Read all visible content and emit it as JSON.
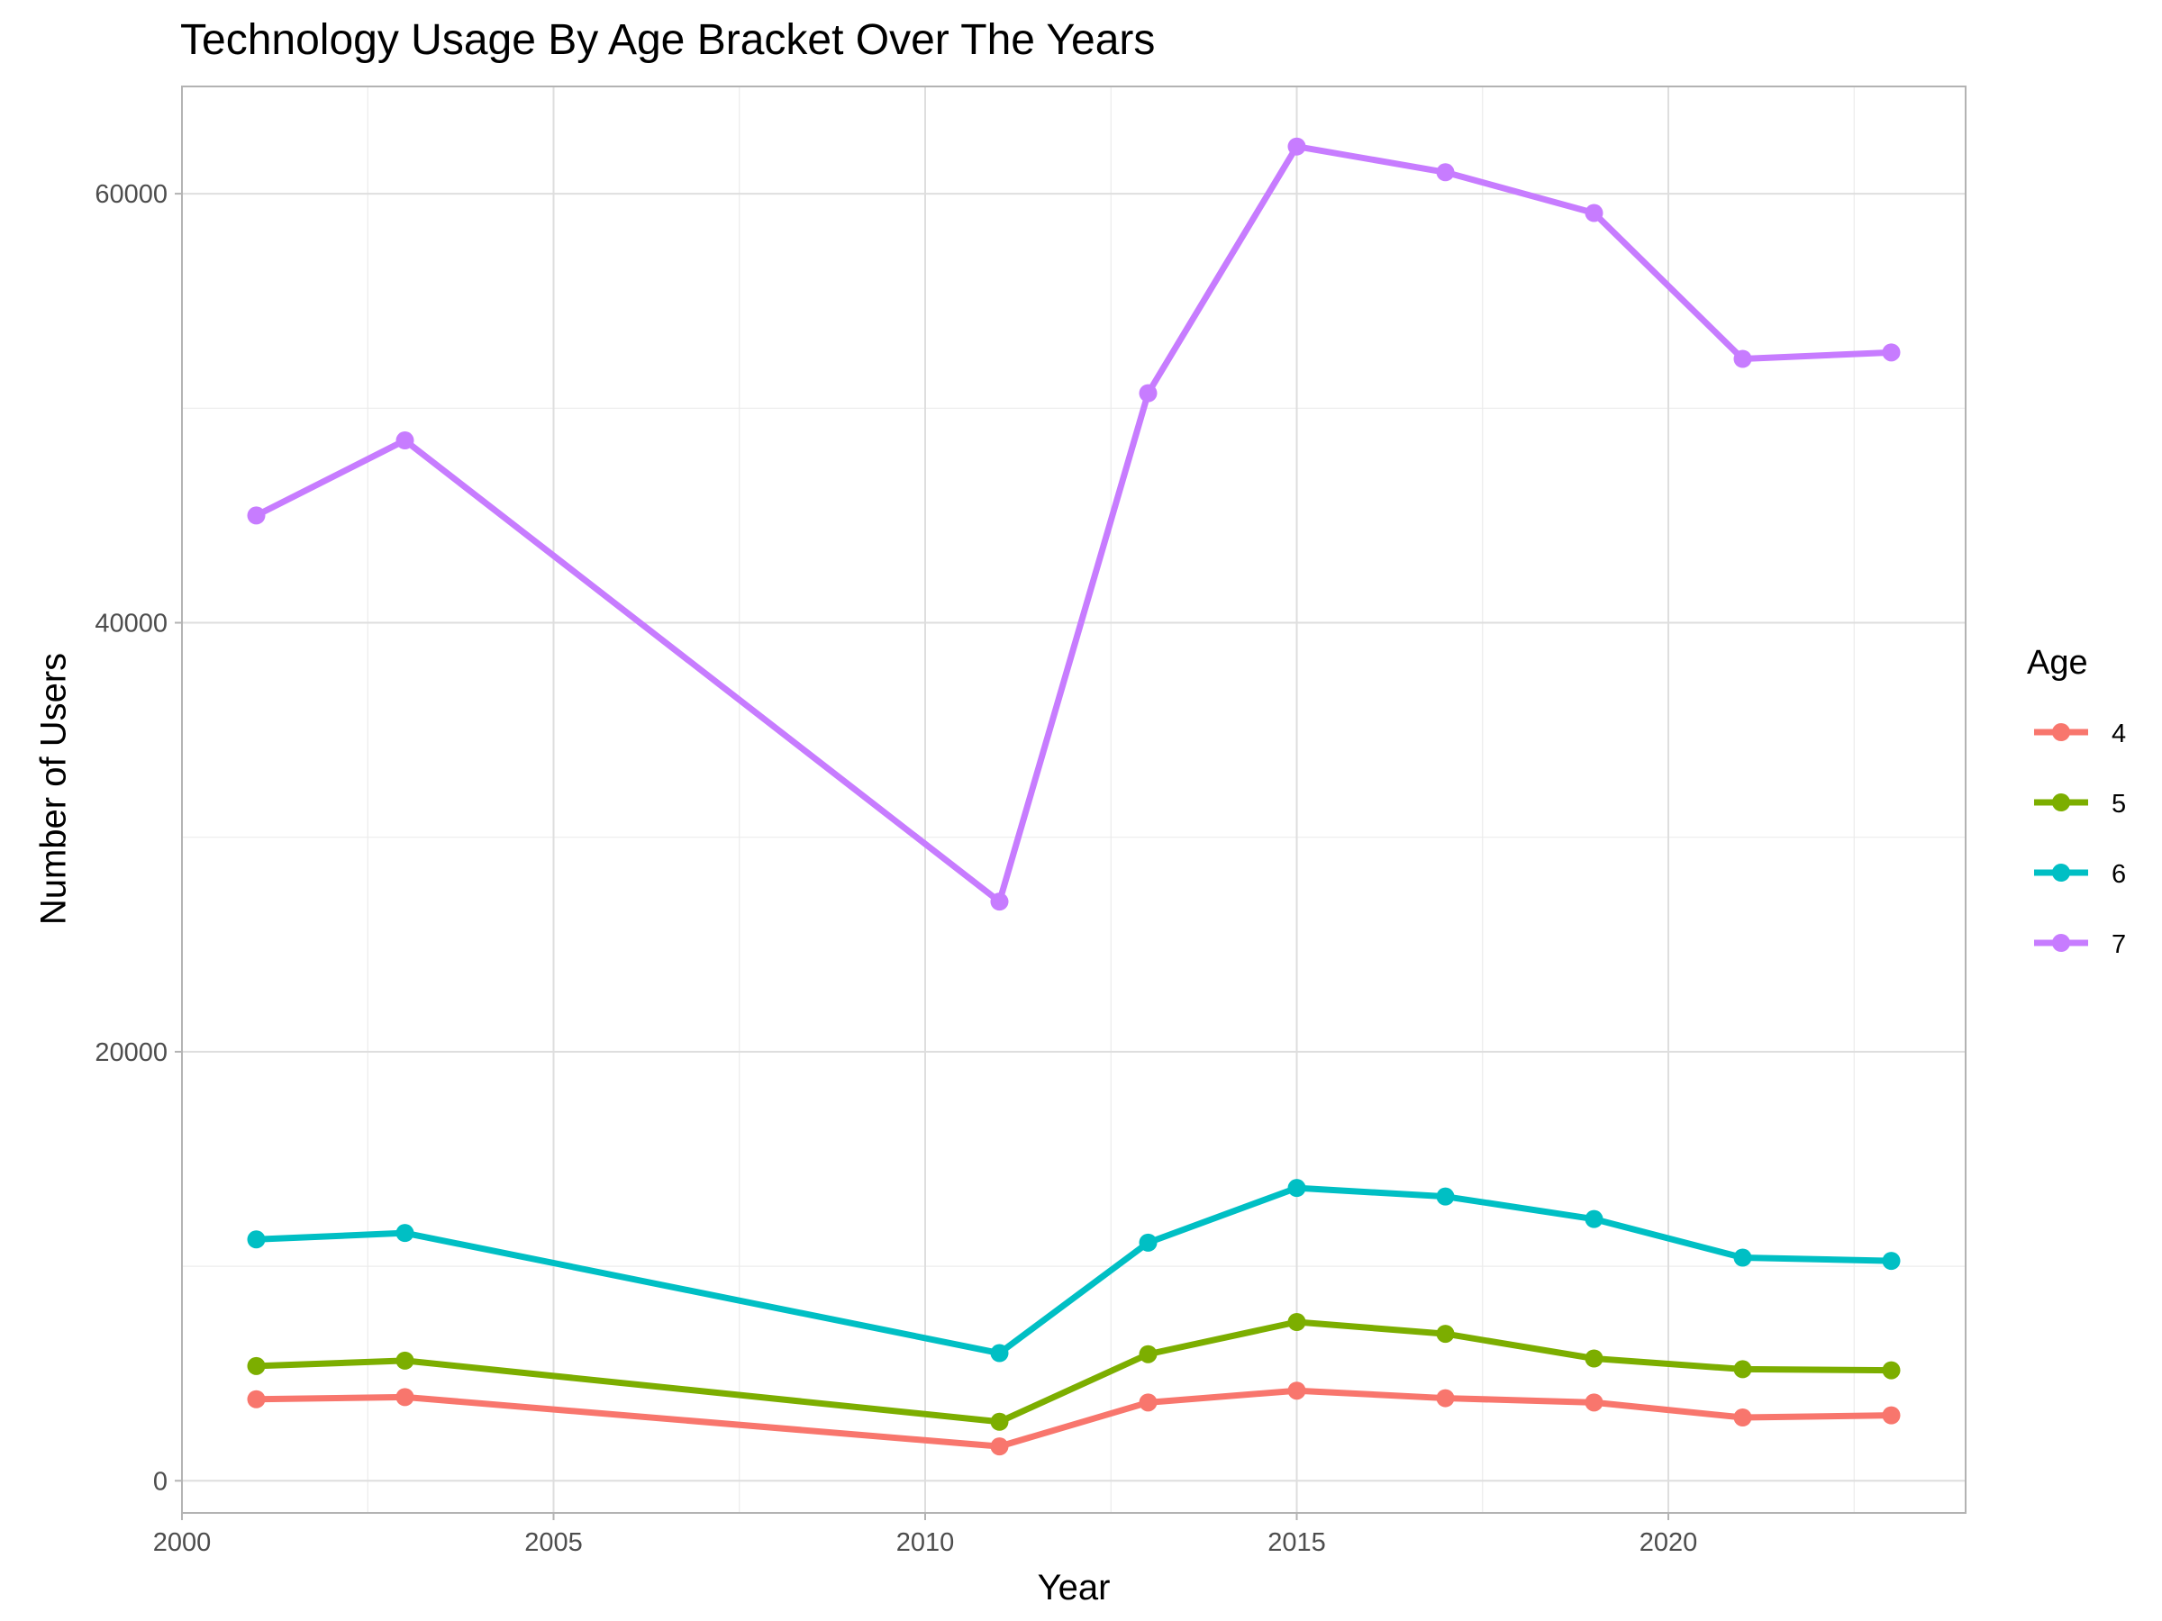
{
  "chart_data": {
    "type": "line",
    "title": "Technology Usage By Age Bracket Over The Years",
    "xlabel": "Year",
    "ylabel": "Number of Users",
    "xlim": [
      2000,
      2024
    ],
    "ylim": [
      -1500,
      65000
    ],
    "x_ticks": [
      2000,
      2005,
      2010,
      2015,
      2020
    ],
    "y_ticks": [
      0,
      20000,
      40000,
      60000
    ],
    "grid": true,
    "legend": {
      "title": "Age",
      "position": "right"
    },
    "x": [
      2001,
      2003,
      2011,
      2013,
      2015,
      2017,
      2019,
      2021,
      2023
    ],
    "series": [
      {
        "name": "4",
        "color": "#F8766D",
        "values": [
          3800,
          3900,
          1600,
          3650,
          4200,
          3850,
          3650,
          2950,
          3050
        ]
      },
      {
        "name": "5",
        "color": "#7CAE00",
        "values": [
          5350,
          5600,
          2750,
          5900,
          7400,
          6850,
          5700,
          5200,
          5150
        ]
      },
      {
        "name": "6",
        "color": "#00BFC4",
        "values": [
          11250,
          11550,
          5950,
          11100,
          13650,
          13250,
          12200,
          10400,
          10250
        ]
      },
      {
        "name": "7",
        "color": "#C77CFF",
        "values": [
          45000,
          48500,
          27000,
          50700,
          62200,
          61000,
          59100,
          52300,
          52600
        ]
      }
    ]
  }
}
